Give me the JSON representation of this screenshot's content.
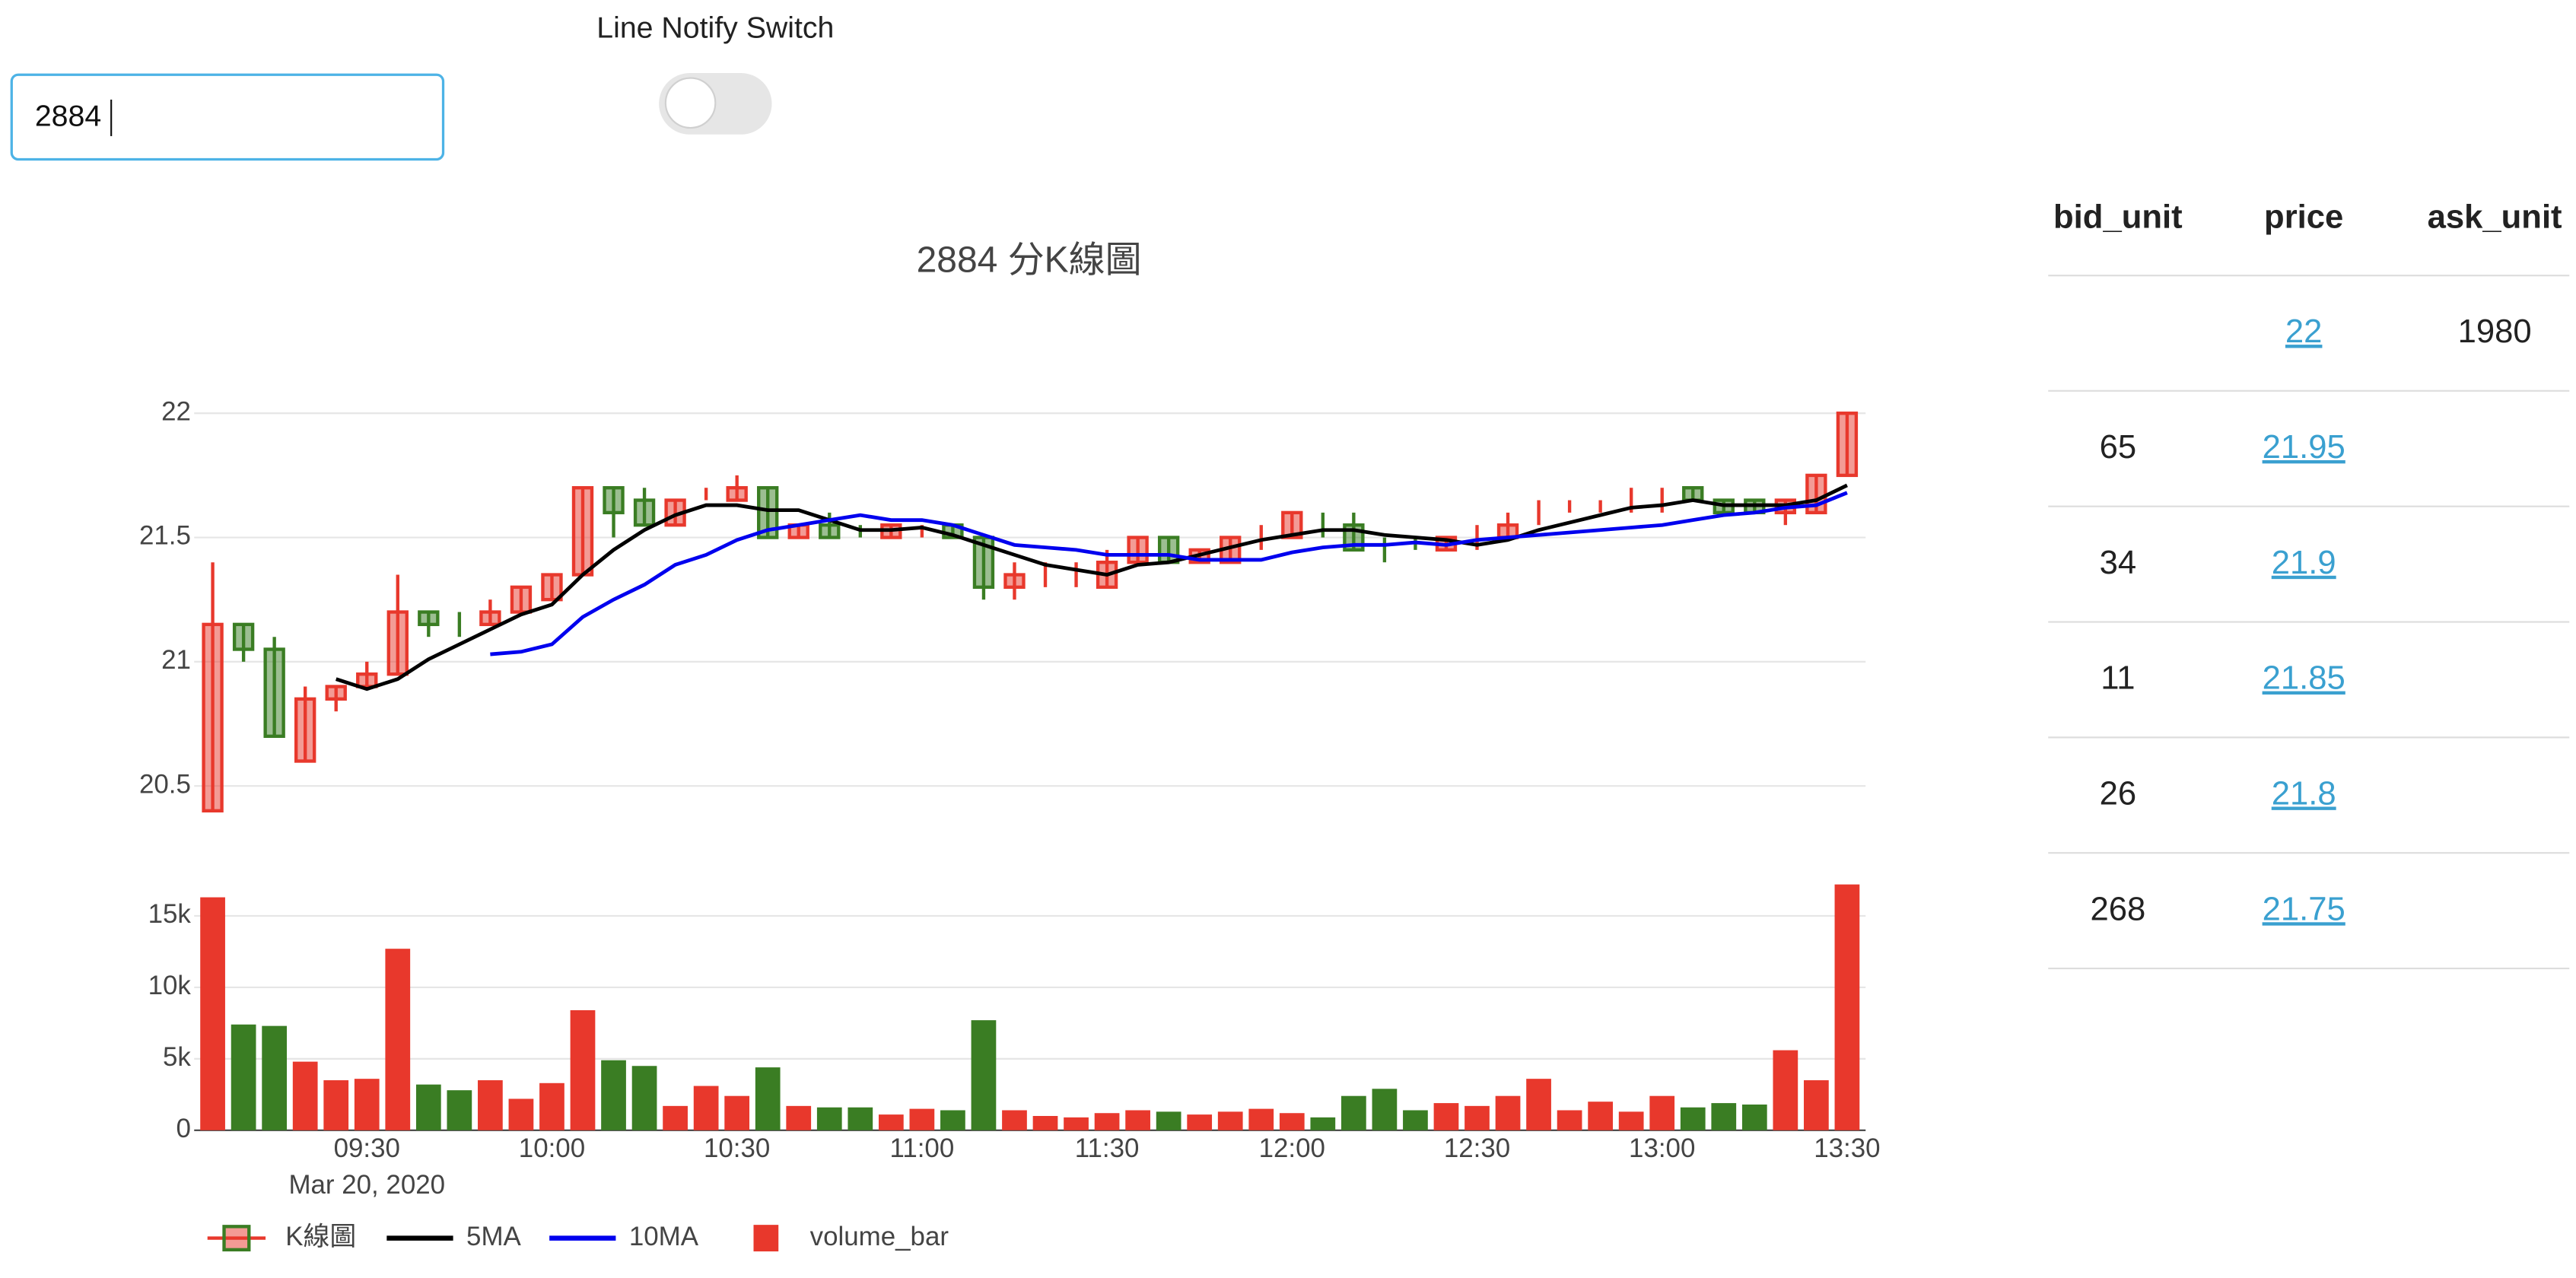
{
  "input": {
    "value": "2884"
  },
  "switch": {
    "label": "Line Notify Switch",
    "on": false
  },
  "chart_data": {
    "type": "candlestick",
    "title": "2884 分K線圖",
    "candle_name": "K線圖",
    "increasing_color": "#e8382c",
    "decreasing_color": "#3a7d23",
    "x": [
      "2020-03-20 09:05",
      "2020-03-20 09:10",
      "2020-03-20 09:15",
      "2020-03-20 09:20",
      "2020-03-20 09:25",
      "2020-03-20 09:30",
      "2020-03-20 09:35",
      "2020-03-20 09:40",
      "2020-03-20 09:45",
      "2020-03-20 09:50",
      "2020-03-20 09:55",
      "2020-03-20 10:00",
      "2020-03-20 10:05",
      "2020-03-20 10:10",
      "2020-03-20 10:15",
      "2020-03-20 10:20",
      "2020-03-20 10:25",
      "2020-03-20 10:30",
      "2020-03-20 10:35",
      "2020-03-20 10:40",
      "2020-03-20 10:45",
      "2020-03-20 10:50",
      "2020-03-20 10:55",
      "2020-03-20 11:00",
      "2020-03-20 11:05",
      "2020-03-20 11:10",
      "2020-03-20 11:15",
      "2020-03-20 11:20",
      "2020-03-20 11:25",
      "2020-03-20 11:30",
      "2020-03-20 11:35",
      "2020-03-20 11:40",
      "2020-03-20 11:45",
      "2020-03-20 11:50",
      "2020-03-20 11:55",
      "2020-03-20 12:00",
      "2020-03-20 12:05",
      "2020-03-20 12:10",
      "2020-03-20 12:15",
      "2020-03-20 12:20",
      "2020-03-20 12:25",
      "2020-03-20 12:30",
      "2020-03-20 12:35",
      "2020-03-20 12:40",
      "2020-03-20 12:45",
      "2020-03-20 12:50",
      "2020-03-20 12:55",
      "2020-03-20 13:00",
      "2020-03-20 13:05",
      "2020-03-20 13:10",
      "2020-03-20 13:15",
      "2020-03-20 13:20",
      "2020-03-20 13:25",
      "2020-03-20 13:30"
    ],
    "open": [
      20.4,
      21.15,
      21.05,
      20.6,
      20.85,
      20.9,
      20.95,
      21.2,
      21.15,
      21.15,
      21.2,
      21.25,
      21.35,
      21.7,
      21.65,
      21.55,
      21.65,
      21.65,
      21.7,
      21.5,
      21.55,
      21.5,
      21.5,
      21.55,
      21.55,
      21.5,
      21.3,
      21.35,
      21.35,
      21.3,
      21.4,
      21.5,
      21.4,
      21.4,
      21.5,
      21.5,
      21.55,
      21.55,
      21.45,
      21.45,
      21.45,
      21.5,
      21.5,
      21.6,
      21.6,
      21.65,
      21.65,
      21.65,
      21.7,
      21.65,
      21.65,
      21.6,
      21.6,
      21.75
    ],
    "high": [
      21.4,
      21.15,
      21.1,
      20.9,
      20.9,
      21.0,
      21.35,
      21.2,
      21.2,
      21.25,
      21.3,
      21.35,
      21.7,
      21.7,
      21.7,
      21.65,
      21.7,
      21.75,
      21.7,
      21.55,
      21.6,
      21.55,
      21.55,
      21.55,
      21.55,
      21.5,
      21.4,
      21.4,
      21.4,
      21.45,
      21.5,
      21.5,
      21.45,
      21.5,
      21.55,
      21.6,
      21.6,
      21.6,
      21.5,
      21.5,
      21.5,
      21.55,
      21.6,
      21.65,
      21.65,
      21.65,
      21.7,
      21.7,
      21.7,
      21.65,
      21.65,
      21.65,
      21.75,
      22
    ],
    "low": [
      20.4,
      21.0,
      20.7,
      20.6,
      20.8,
      20.9,
      20.95,
      21.1,
      21.1,
      21.15,
      21.2,
      21.25,
      21.35,
      21.5,
      21.55,
      21.55,
      21.65,
      21.65,
      21.5,
      21.5,
      21.5,
      21.5,
      21.5,
      21.5,
      21.5,
      21.25,
      21.25,
      21.3,
      21.3,
      21.3,
      21.4,
      21.4,
      21.4,
      21.4,
      21.45,
      21.5,
      21.5,
      21.45,
      21.4,
      21.45,
      21.45,
      21.45,
      21.5,
      21.55,
      21.6,
      21.6,
      21.6,
      21.6,
      21.65,
      21.6,
      21.6,
      21.55,
      21.6,
      21.75
    ],
    "close": [
      21.15,
      21.05,
      20.7,
      20.85,
      20.9,
      20.95,
      21.2,
      21.15,
      21.15,
      21.2,
      21.3,
      21.35,
      21.7,
      21.6,
      21.55,
      21.65,
      21.65,
      21.7,
      21.5,
      21.55,
      21.5,
      21.5,
      21.55,
      21.55,
      21.5,
      21.3,
      21.35,
      21.35,
      21.35,
      21.4,
      21.5,
      21.4,
      21.45,
      21.5,
      21.5,
      21.6,
      21.55,
      21.45,
      21.45,
      21.45,
      21.5,
      21.5,
      21.55,
      21.6,
      21.6,
      21.65,
      21.65,
      21.65,
      21.65,
      21.6,
      21.6,
      21.65,
      21.75,
      22
    ],
    "ma": [
      {
        "name": "5MA",
        "color": "#000000",
        "values": [
          null,
          null,
          null,
          null,
          20.93,
          20.89,
          20.93,
          21.01,
          21.07,
          21.13,
          21.19,
          21.23,
          21.35,
          21.45,
          21.53,
          21.59,
          21.63,
          21.63,
          21.61,
          21.61,
          21.57,
          21.53,
          21.53,
          21.54,
          21.51,
          21.47,
          21.43,
          21.39,
          21.37,
          21.35,
          21.39,
          21.4,
          21.43,
          21.46,
          21.49,
          21.51,
          21.53,
          21.53,
          21.51,
          21.5,
          21.49,
          21.47,
          21.49,
          21.53,
          21.56,
          21.59,
          21.62,
          21.63,
          21.65,
          21.63,
          21.63,
          21.63,
          21.65,
          21.71
        ]
      },
      {
        "name": "10MA",
        "color": "#0000ee",
        "values": [
          null,
          null,
          null,
          null,
          null,
          null,
          null,
          null,
          null,
          21.03,
          21.04,
          21.07,
          21.18,
          21.25,
          21.31,
          21.39,
          21.43,
          21.49,
          21.53,
          21.55,
          21.57,
          21.59,
          21.57,
          21.57,
          21.55,
          21.51,
          21.47,
          21.46,
          21.45,
          21.43,
          21.43,
          21.43,
          21.41,
          21.41,
          21.41,
          21.44,
          21.46,
          21.47,
          21.47,
          21.48,
          21.47,
          21.49,
          21.5,
          21.51,
          21.52,
          21.53,
          21.54,
          21.55,
          21.57,
          21.59,
          21.6,
          21.62,
          21.63,
          21.68
        ]
      }
    ],
    "volume": {
      "name": "volume_bar",
      "values": [
        16300,
        7400,
        7300,
        4800,
        3500,
        3600,
        12700,
        3200,
        2800,
        3500,
        2200,
        3300,
        8400,
        4900,
        4500,
        1700,
        3100,
        2400,
        4400,
        1700,
        1600,
        1600,
        1100,
        1500,
        1400,
        7700,
        1400,
        1000,
        900,
        1200,
        1400,
        1300,
        1100,
        1300,
        1500,
        1200,
        900,
        2400,
        2900,
        1400,
        1900,
        1700,
        2400,
        3600,
        1400,
        2000,
        1300,
        2400,
        1600,
        1900,
        1800,
        5600,
        3500,
        17200
      ],
      "colors": [
        "#e8382c",
        "#3a7d23",
        "#3a7d23",
        "#e8382c",
        "#e8382c",
        "#e8382c",
        "#e8382c",
        "#3a7d23",
        "#3a7d23",
        "#e8382c",
        "#e8382c",
        "#e8382c",
        "#e8382c",
        "#3a7d23",
        "#3a7d23",
        "#e8382c",
        "#e8382c",
        "#e8382c",
        "#3a7d23",
        "#e8382c",
        "#3a7d23",
        "#3a7d23",
        "#e8382c",
        "#e8382c",
        "#3a7d23",
        "#3a7d23",
        "#e8382c",
        "#e8382c",
        "#e8382c",
        "#e8382c",
        "#e8382c",
        "#3a7d23",
        "#e8382c",
        "#e8382c",
        "#e8382c",
        "#e8382c",
        "#3a7d23",
        "#3a7d23",
        "#3a7d23",
        "#3a7d23",
        "#e8382c",
        "#e8382c",
        "#e8382c",
        "#e8382c",
        "#e8382c",
        "#e8382c",
        "#e8382c",
        "#e8382c",
        "#3a7d23",
        "#3a7d23",
        "#3a7d23",
        "#e8382c",
        "#e8382c",
        "#e8382c"
      ]
    },
    "xlim": [
      "2020-03-20 09:02",
      "2020-03-20 13:33"
    ],
    "xticks": [
      {
        "value": "2020-03-20 09:30",
        "label": "09:30"
      },
      {
        "value": "2020-03-20 10:00",
        "label": "10:00"
      },
      {
        "value": "2020-03-20 10:30",
        "label": "10:30"
      },
      {
        "value": "2020-03-20 11:00",
        "label": "11:00"
      },
      {
        "value": "2020-03-20 11:30",
        "label": "11:30"
      },
      {
        "value": "2020-03-20 12:00",
        "label": "12:00"
      },
      {
        "value": "2020-03-20 12:30",
        "label": "12:30"
      },
      {
        "value": "2020-03-20 13:00",
        "label": "13:00"
      },
      {
        "value": "2020-03-20 13:30",
        "label": "13:30"
      }
    ],
    "x_date_label": "Mar 20, 2020",
    "ylim": [
      20.37,
      22.1
    ],
    "yticks": [
      20.5,
      21,
      21.5,
      22
    ],
    "y2lim": [
      0,
      18000
    ],
    "y2ticks": [
      0,
      {
        "value": 5000,
        "label": "5k"
      },
      {
        "value": 10000,
        "label": "10k"
      },
      {
        "value": 15000,
        "label": "15k"
      }
    ],
    "grid": true
  },
  "order_book": {
    "columns": [
      "bid_unit",
      "price",
      "ask_unit"
    ],
    "rows": [
      [
        null,
        22,
        1980
      ],
      [
        65,
        21.95,
        null
      ],
      [
        34,
        21.9,
        null
      ],
      [
        11,
        21.85,
        null
      ],
      [
        26,
        21.8,
        null
      ],
      [
        268,
        21.75,
        null
      ]
    ]
  }
}
